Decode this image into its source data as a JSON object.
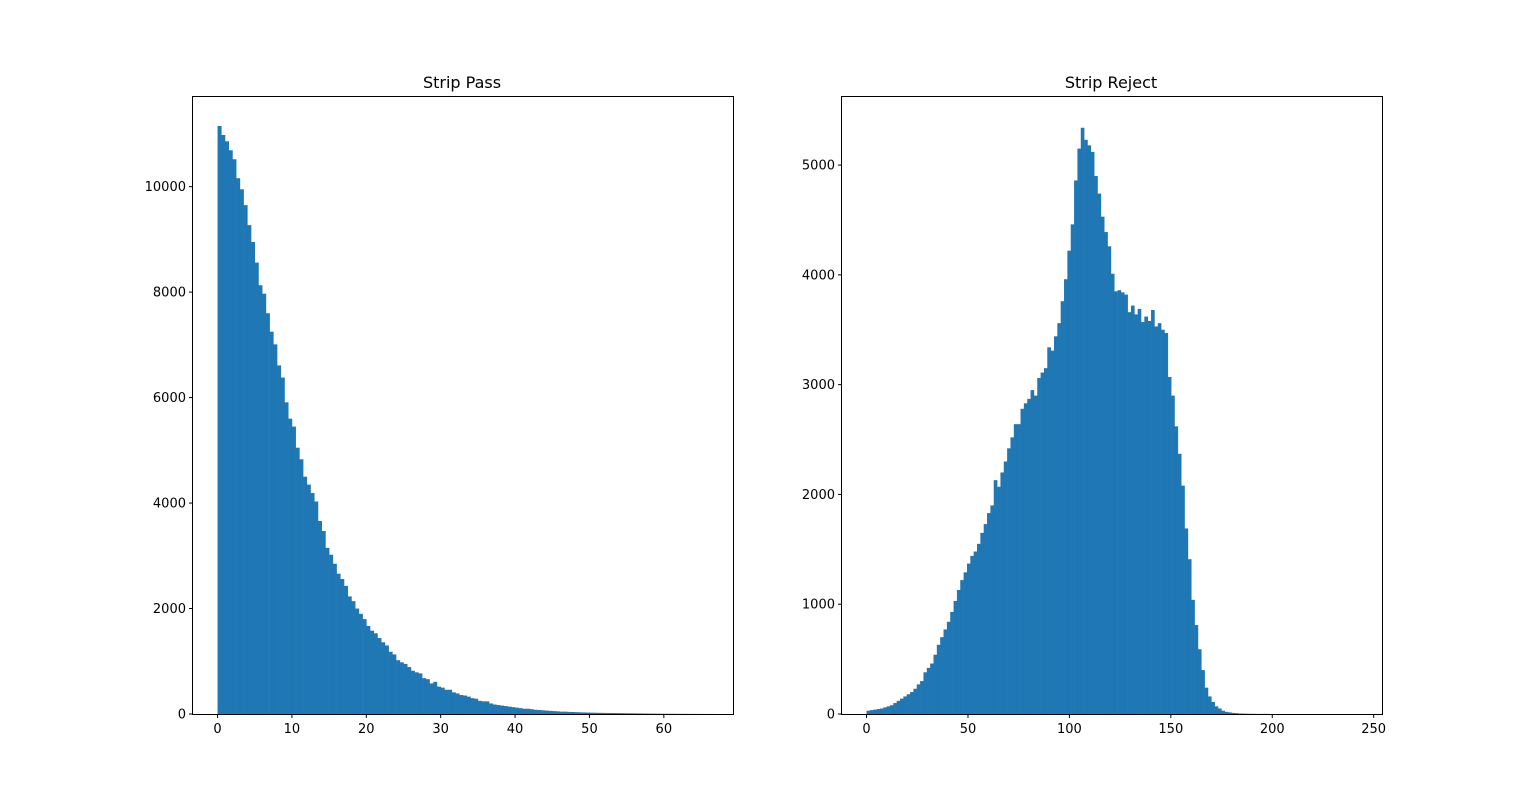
{
  "chart_data": [
    {
      "type": "bar",
      "title": "Strip Pass",
      "xlabel": "",
      "ylabel": "",
      "color": "#1f77b4",
      "xlim": [
        -3.3,
        69.3
      ],
      "ylim": [
        0,
        11700
      ],
      "xticks": [
        0,
        10,
        20,
        30,
        40,
        50,
        60
      ],
      "yticks": [
        0,
        2000,
        4000,
        6000,
        8000,
        10000
      ],
      "bin_start": 0,
      "bin_width": 0.5,
      "values": [
        11150,
        10980,
        10860,
        10690,
        10520,
        10160,
        9950,
        9650,
        9270,
        8950,
        8560,
        8130,
        7970,
        7600,
        7250,
        7010,
        6610,
        6380,
        5910,
        5600,
        5450,
        5050,
        4830,
        4500,
        4350,
        4190,
        4030,
        3660,
        3470,
        3150,
        3020,
        2850,
        2660,
        2560,
        2430,
        2230,
        2140,
        2000,
        1900,
        1800,
        1670,
        1580,
        1530,
        1440,
        1360,
        1300,
        1180,
        1130,
        1020,
        980,
        950,
        890,
        820,
        790,
        770,
        680,
        660,
        580,
        610,
        520,
        500,
        460,
        460,
        410,
        390,
        360,
        350,
        330,
        300,
        290,
        250,
        240,
        240,
        200,
        180,
        170,
        160,
        150,
        140,
        130,
        120,
        110,
        100,
        100,
        90,
        80,
        75,
        70,
        65,
        60,
        55,
        50,
        45,
        45,
        40,
        38,
        35,
        32,
        30,
        28,
        26,
        24,
        22,
        21,
        20,
        19,
        18,
        17,
        16,
        15,
        14,
        13,
        12,
        11,
        10,
        9,
        8,
        7,
        6,
        5,
        5,
        4,
        4,
        3,
        3,
        3,
        2,
        2,
        2,
        2,
        1,
        1,
        1,
        1
      ]
    },
    {
      "type": "bar",
      "title": "Strip Reject",
      "xlabel": "",
      "ylabel": "",
      "color": "#1f77b4",
      "xlim": [
        -12.1,
        254.1
      ],
      "ylim": [
        0,
        5620
      ],
      "xticks": [
        0,
        50,
        100,
        150,
        200,
        250
      ],
      "yticks": [
        0,
        1000,
        2000,
        3000,
        4000,
        5000
      ],
      "bin_start": 0,
      "bin_width": 1.65,
      "values": [
        30,
        35,
        40,
        45,
        50,
        60,
        70,
        80,
        100,
        120,
        140,
        160,
        180,
        200,
        230,
        270,
        300,
        380,
        420,
        460,
        540,
        630,
        700,
        770,
        840,
        930,
        1030,
        1130,
        1220,
        1290,
        1370,
        1440,
        1480,
        1550,
        1650,
        1730,
        1830,
        1900,
        2130,
        2070,
        2200,
        2300,
        2420,
        2520,
        2640,
        2640,
        2780,
        2830,
        2870,
        2950,
        2900,
        3060,
        3110,
        3150,
        3340,
        3310,
        3440,
        3560,
        3760,
        3960,
        4220,
        4460,
        4860,
        5150,
        5340,
        5230,
        5180,
        5120,
        4900,
        4740,
        4530,
        4390,
        4260,
        4010,
        3850,
        3860,
        3840,
        3820,
        3660,
        3720,
        3640,
        3690,
        3570,
        3620,
        3580,
        3680,
        3530,
        3560,
        3500,
        3470,
        3070,
        2900,
        2620,
        2370,
        2080,
        1690,
        1410,
        1040,
        810,
        590,
        400,
        240,
        160,
        110,
        70,
        50,
        30,
        20,
        15,
        10,
        8,
        5,
        4,
        3,
        2,
        2,
        1,
        1,
        1,
        1
      ]
    }
  ]
}
